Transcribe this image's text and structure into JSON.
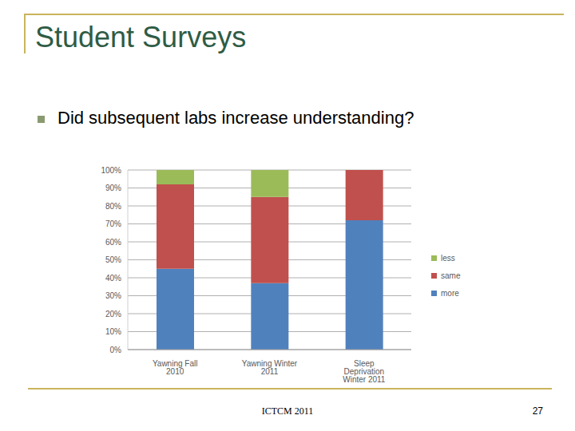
{
  "slide": {
    "title": "Student Surveys",
    "bullet": "Did subsequent labs increase understanding?",
    "footer": "ICTCM 2011",
    "page_number": "27"
  },
  "chart_data": {
    "type": "bar",
    "stacked": true,
    "grid": true,
    "legend": "right",
    "categories": [
      "Yawning Fall 2010",
      "Yawning Winter 2011",
      "Sleep Deprivation Winter 2011"
    ],
    "series": [
      {
        "name": "more",
        "color": "#4f81bd",
        "values": [
          45,
          37,
          72
        ]
      },
      {
        "name": "same",
        "color": "#c0504d",
        "values": [
          47,
          48,
          28
        ]
      },
      {
        "name": "less",
        "color": "#9bbb59",
        "values": [
          8,
          15,
          0
        ]
      }
    ],
    "ylim": [
      0,
      100
    ],
    "yticks": [
      {
        "value": 0,
        "label": "0%"
      },
      {
        "value": 10,
        "label": "10%"
      },
      {
        "value": 20,
        "label": "20%"
      },
      {
        "value": 30,
        "label": "30%"
      },
      {
        "value": 40,
        "label": "40%"
      },
      {
        "value": 50,
        "label": "50%"
      },
      {
        "value": 60,
        "label": "60%"
      },
      {
        "value": 70,
        "label": "70%"
      },
      {
        "value": 80,
        "label": "80%"
      },
      {
        "value": 90,
        "label": "90%"
      },
      {
        "value": 100,
        "label": "100%"
      }
    ]
  }
}
